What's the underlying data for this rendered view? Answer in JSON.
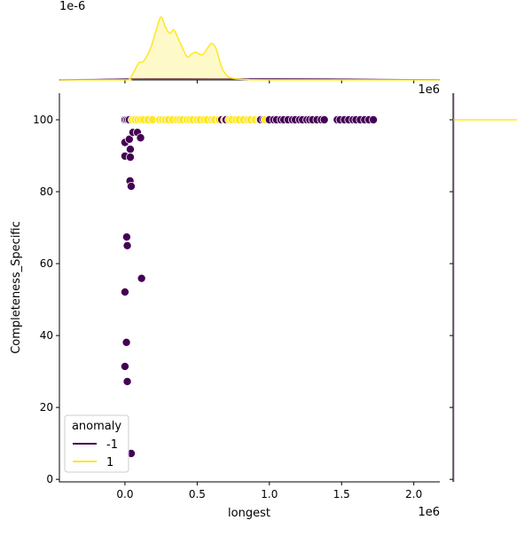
{
  "chart_data": {
    "type": "scatter",
    "kind": "jointplot",
    "xlabel": "longest",
    "ylabel": "Completeness_Specific",
    "x_offset_text": "1e6",
    "top_marginal_offset_text": "1e-6",
    "x_scale_factor": 1000000,
    "xlim": [
      -0.454,
      2.18
    ],
    "ylim": [
      -0.7,
      107.4
    ],
    "x_ticks": [
      0.0,
      0.5,
      1.0,
      1.5,
      2.0
    ],
    "x_tick_labels": [
      "0.0",
      "0.5",
      "1.0",
      "1.5",
      "2.0"
    ],
    "y_ticks": [
      0,
      20,
      40,
      60,
      80,
      100
    ],
    "y_tick_labels": [
      "0",
      "20",
      "40",
      "60",
      "80",
      "100"
    ],
    "grid": false,
    "legend": {
      "title": "anomaly",
      "placement": "lower-left",
      "entries": [
        {
          "label": "-1",
          "color": "#440154"
        },
        {
          "label": "1",
          "color": "#fde725"
        }
      ]
    },
    "series": [
      {
        "name": "-1",
        "color": "#440154",
        "points": [
          [
            0.0,
            93.7
          ],
          [
            0.055,
            96.5
          ],
          [
            0.086,
            96.5
          ],
          [
            0.108,
            95.0
          ],
          [
            0.03,
            94.6
          ],
          [
            0.037,
            91.8
          ],
          [
            0.0,
            89.9
          ],
          [
            0.037,
            89.6
          ],
          [
            0.035,
            83.0
          ],
          [
            0.043,
            81.5
          ],
          [
            0.012,
            67.4
          ],
          [
            0.016,
            65.0
          ],
          [
            0.115,
            55.9
          ],
          [
            0.0,
            52.1
          ],
          [
            0.01,
            38.1
          ],
          [
            0.0,
            31.4
          ],
          [
            0.016,
            27.2
          ],
          [
            0.043,
            7.2
          ],
          [
            0.0,
            100
          ],
          [
            0.01,
            100
          ],
          [
            0.02,
            100
          ],
          [
            0.03,
            100
          ],
          [
            0.67,
            100
          ],
          [
            0.7,
            100
          ],
          [
            0.9,
            100
          ],
          [
            0.94,
            100
          ],
          [
            0.96,
            100
          ],
          [
            1.0,
            100
          ],
          [
            1.03,
            100
          ],
          [
            1.05,
            100
          ],
          [
            1.08,
            100
          ],
          [
            1.1,
            100
          ],
          [
            1.13,
            100
          ],
          [
            1.16,
            100
          ],
          [
            1.18,
            100
          ],
          [
            1.21,
            100
          ],
          [
            1.23,
            100
          ],
          [
            1.26,
            100
          ],
          [
            1.28,
            100
          ],
          [
            1.3,
            100
          ],
          [
            1.33,
            100
          ],
          [
            1.36,
            100
          ],
          [
            1.38,
            100
          ],
          [
            1.47,
            100
          ],
          [
            1.49,
            100
          ],
          [
            1.52,
            100
          ],
          [
            1.55,
            100
          ],
          [
            1.58,
            100
          ],
          [
            1.6,
            100
          ],
          [
            1.63,
            100
          ],
          [
            1.66,
            100
          ],
          [
            1.69,
            100
          ],
          [
            1.72,
            100
          ]
        ],
        "x_kde": [
          [
            -0.45,
            0.0
          ],
          [
            -0.2,
            0.005
          ],
          [
            0.0,
            0.012
          ],
          [
            0.3,
            0.014
          ],
          [
            0.6,
            0.012
          ],
          [
            1.0,
            0.014
          ],
          [
            1.4,
            0.012
          ],
          [
            1.8,
            0.006
          ],
          [
            2.18,
            0.001
          ]
        ]
      },
      {
        "name": "1",
        "color": "#fde725",
        "points": [
          [
            0.05,
            100
          ],
          [
            0.07,
            100
          ],
          [
            0.09,
            100
          ],
          [
            0.11,
            100
          ],
          [
            0.13,
            100
          ],
          [
            0.16,
            100
          ],
          [
            0.19,
            100
          ],
          [
            0.24,
            100
          ],
          [
            0.26,
            100
          ],
          [
            0.28,
            100
          ],
          [
            0.3,
            100
          ],
          [
            0.33,
            100
          ],
          [
            0.36,
            100
          ],
          [
            0.38,
            100
          ],
          [
            0.4,
            100
          ],
          [
            0.43,
            100
          ],
          [
            0.45,
            100
          ],
          [
            0.47,
            100
          ],
          [
            0.5,
            100
          ],
          [
            0.52,
            100
          ],
          [
            0.55,
            100
          ],
          [
            0.57,
            100
          ],
          [
            0.6,
            100
          ],
          [
            0.62,
            100
          ],
          [
            0.65,
            100
          ],
          [
            0.69,
            100
          ],
          [
            0.72,
            100
          ],
          [
            0.74,
            100
          ],
          [
            0.77,
            100
          ],
          [
            0.79,
            100
          ],
          [
            0.82,
            100
          ],
          [
            0.85,
            100
          ],
          [
            0.87,
            100
          ],
          [
            0.9,
            100
          ],
          [
            0.93,
            100
          ],
          [
            0.97,
            100
          ]
        ],
        "x_kde": [
          [
            -0.45,
            0
          ],
          [
            0.0,
            0
          ],
          [
            0.03,
            0.01
          ],
          [
            0.06,
            0.12
          ],
          [
            0.096,
            0.27
          ],
          [
            0.13,
            0.3
          ],
          [
            0.18,
            0.52
          ],
          [
            0.22,
            0.82
          ],
          [
            0.25,
            1.0
          ],
          [
            0.28,
            0.84
          ],
          [
            0.31,
            0.74
          ],
          [
            0.34,
            0.79
          ],
          [
            0.38,
            0.6
          ],
          [
            0.43,
            0.37
          ],
          [
            0.46,
            0.41
          ],
          [
            0.49,
            0.44
          ],
          [
            0.535,
            0.4
          ],
          [
            0.57,
            0.5
          ],
          [
            0.6,
            0.58
          ],
          [
            0.63,
            0.5
          ],
          [
            0.67,
            0.2
          ],
          [
            0.71,
            0.06
          ],
          [
            0.76,
            0.02
          ],
          [
            0.85,
            0.005
          ],
          [
            1.0,
            0
          ],
          [
            2.18,
            0
          ]
        ]
      }
    ]
  }
}
